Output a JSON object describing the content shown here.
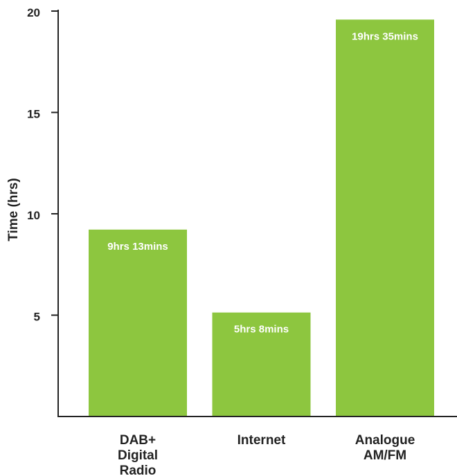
{
  "chart_data": {
    "type": "bar",
    "title": "",
    "xlabel": "",
    "ylabel": "Time (hrs)",
    "ylim": [
      0,
      20
    ],
    "yticks": [
      5,
      10,
      15,
      20
    ],
    "grid": false,
    "bar_color": "#8dc63f",
    "axis_color": "#222222",
    "categories": [
      {
        "lines": [
          "DAB+",
          "Digital",
          "Radio"
        ]
      },
      {
        "lines": [
          "Internet"
        ]
      },
      {
        "lines": [
          "Analogue",
          "AM/FM"
        ]
      }
    ],
    "values": [
      9.22,
      5.13,
      19.58
    ],
    "data_labels": [
      "9hrs 13mins",
      "5hrs 8mins",
      "19hrs 35mins"
    ]
  }
}
